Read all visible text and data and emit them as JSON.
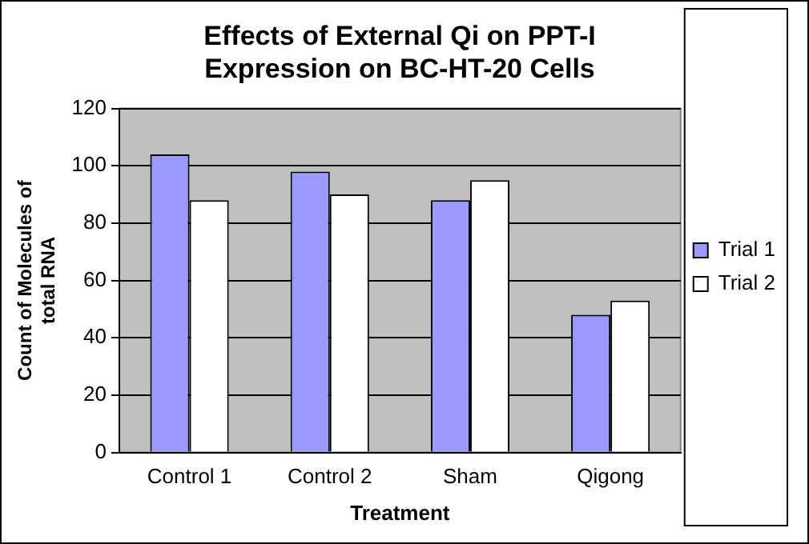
{
  "chart_data": {
    "type": "bar",
    "title": "Effects of External Qi on PPT-I Expression on BC-HT-20 Cells",
    "xlabel": "Treatment",
    "ylabel": "Count of Molecules of total RNA",
    "categories": [
      "Control 1",
      "Control 2",
      "Sham",
      "Qigong"
    ],
    "series": [
      {
        "name": "Trial 1",
        "color": "#9999ff",
        "values": [
          104,
          98,
          88,
          48
        ]
      },
      {
        "name": "Trial 2",
        "color": "#ffffff",
        "values": [
          88,
          90,
          95,
          53
        ]
      }
    ],
    "ylim": [
      0,
      120
    ],
    "yticks": [
      0,
      20,
      40,
      60,
      80,
      100,
      120
    ],
    "grid": "y",
    "legend": "right"
  }
}
